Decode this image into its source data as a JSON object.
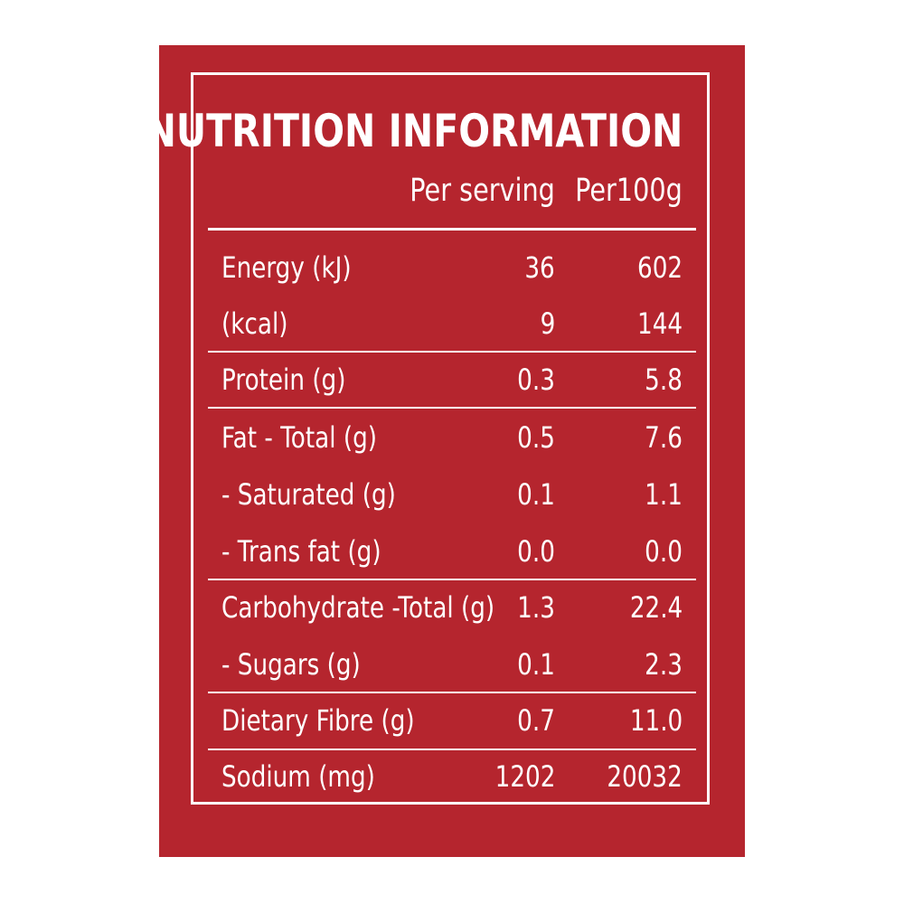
{
  "panel": {
    "title": "NUTRITION INFORMATION",
    "columns": {
      "per_serving": "Per serving",
      "per_100g": "Per100g"
    },
    "rows": [
      {
        "label": "Energy (kJ)",
        "per_serving": "36",
        "per_100g": "602"
      },
      {
        "label": "(kcal)",
        "per_serving": "9",
        "per_100g": "144"
      },
      {
        "label": "Protein (g)",
        "per_serving": "0.3",
        "per_100g": "5.8"
      },
      {
        "label": "Fat - Total (g)",
        "per_serving": "0.5",
        "per_100g": "7.6"
      },
      {
        "label": "- Saturated (g)",
        "per_serving": "0.1",
        "per_100g": "1.1"
      },
      {
        "label": "- Trans fat (g)",
        "per_serving": "0.0",
        "per_100g": "0.0"
      },
      {
        "label": "Carbohydrate -Total (g)",
        "per_serving": "1.3",
        "per_100g": "22.4"
      },
      {
        "label": "- Sugars (g)",
        "per_serving": "0.1",
        "per_100g": "2.3"
      },
      {
        "label": "Dietary Fibre (g)",
        "per_serving": "0.7",
        "per_100g": "11.0"
      },
      {
        "label": "Sodium (mg)",
        "per_serving": "1202",
        "per_100g": "20032"
      }
    ]
  },
  "colors": {
    "panel_background": "#b5252e",
    "text": "#ffffff"
  }
}
